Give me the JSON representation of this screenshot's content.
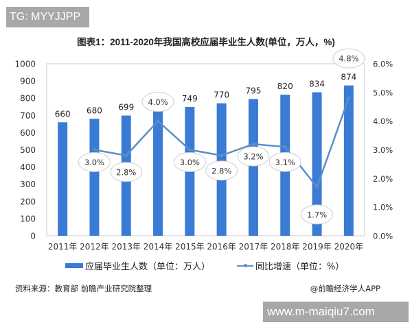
{
  "overlay": {
    "tg_label": "TG: MYYJJPP",
    "url_label": "www.m-maiqiu7.com"
  },
  "header": {
    "title": "图表1：2011-2020年我国高校应届毕业生人数(单位，万人，%)"
  },
  "legend": {
    "bar_label": "应届毕业生人数（单位：万人）",
    "line_label": "同比增速（单位：%）"
  },
  "footer": {
    "source": "资料来源：教育部 前瞻产业研究院整理",
    "credit": "@前瞻经济学人APP"
  },
  "colors": {
    "bar": "#3a7bd5",
    "line": "#5b8ec7",
    "axis": "#c8c8c8",
    "label_bubble_border": "#cfcfcf"
  },
  "chart_data": {
    "type": "bar",
    "title": "图表1：2011-2020年我国高校应届毕业生人数(单位，万人，%)",
    "categories": [
      "2011年",
      "2012年",
      "2013年",
      "2014年",
      "2015年",
      "2016年",
      "2017年",
      "2018年",
      "2019年",
      "2020年"
    ],
    "series": [
      {
        "name": "应届毕业生人数（单位：万人）",
        "type": "bar",
        "axis": "left",
        "values": [
          660,
          680,
          699,
          727,
          749,
          770,
          795,
          820,
          834,
          874
        ],
        "labels": [
          "660",
          "680",
          "699",
          "727",
          "749",
          "770",
          "795",
          "820",
          "834",
          "874"
        ]
      },
      {
        "name": "同比增速（单位：%）",
        "type": "line",
        "axis": "right",
        "values": [
          null,
          3.0,
          2.8,
          4.0,
          3.0,
          2.8,
          3.2,
          3.1,
          1.7,
          4.8
        ],
        "labels": [
          "",
          "3.0%",
          "2.8%",
          "4.0%",
          "3.0%",
          "2.8%",
          "3.2%",
          "3.1%",
          "1.7%",
          "4.8%"
        ]
      }
    ],
    "left_axis": {
      "ticks": [
        "0",
        "100",
        "200",
        "300",
        "400",
        "500",
        "600",
        "700",
        "800",
        "900",
        "1000"
      ],
      "range": [
        0,
        1000
      ]
    },
    "right_axis": {
      "ticks": [
        "0.0%",
        "1.0%",
        "2.0%",
        "3.0%",
        "4.0%",
        "5.0%",
        "6.0%"
      ],
      "range": [
        0,
        6
      ]
    },
    "xlabel": "",
    "ylabel": "",
    "grid": false,
    "legend_position": "bottom"
  }
}
